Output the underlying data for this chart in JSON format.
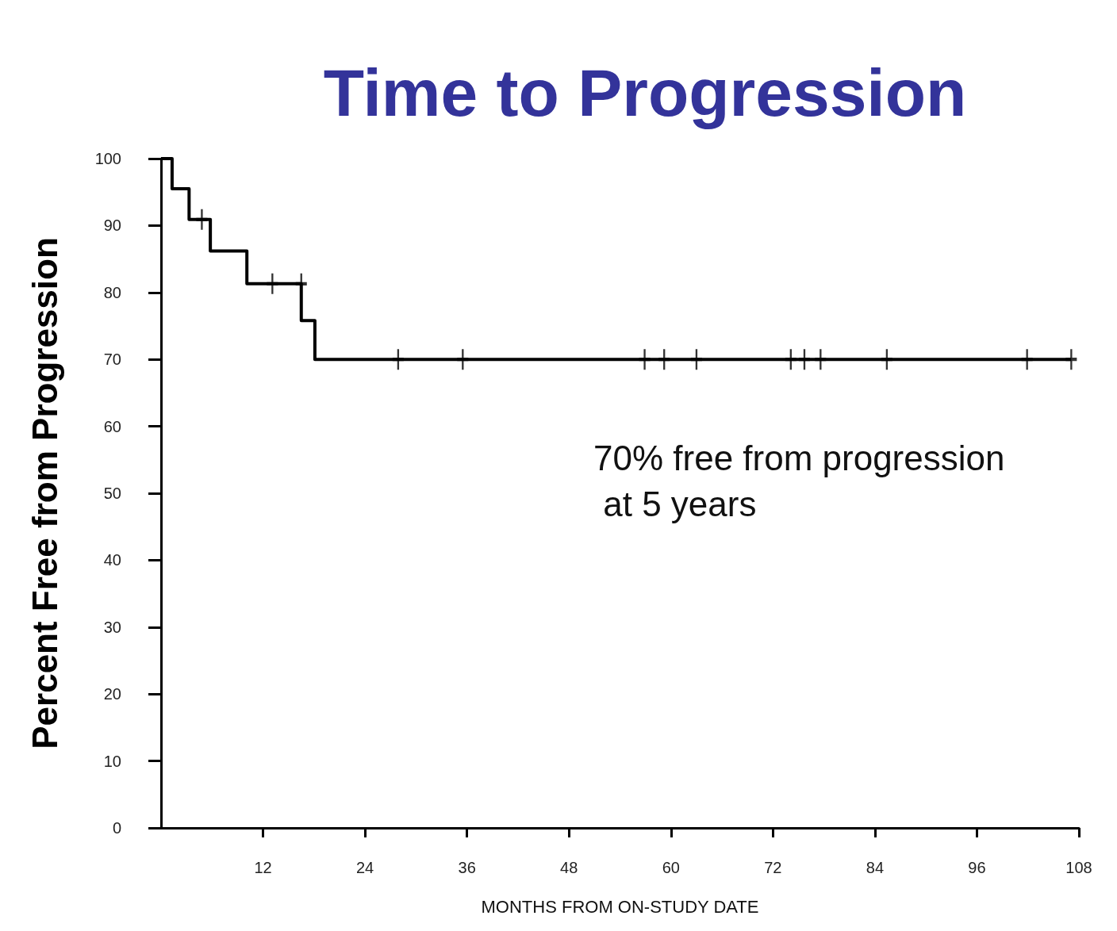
{
  "chart_data": {
    "type": "step",
    "title": "Time to Progression",
    "xlabel": "MONTHS FROM ON-STUDY DATE",
    "ylabel": "Percent Free from Progression",
    "annotations": [
      "70% free from progression\n at 5 years"
    ],
    "xlim": [
      0,
      108
    ],
    "xticks": [
      12,
      24,
      36,
      48,
      60,
      72,
      84,
      96,
      108
    ],
    "ylim": [
      0,
      100
    ],
    "yticks": [
      0,
      10,
      20,
      30,
      40,
      50,
      60,
      70,
      80,
      90,
      100
    ],
    "grid": false,
    "marker": "none",
    "line_style": "solid",
    "series": [
      {
        "color": "#000000",
        "x": [
          0,
          1.3,
          3.3,
          5.8,
          10.1,
          16.5,
          18.1,
          107.1
        ],
        "values": [
          100,
          95.5,
          90.9,
          86.2,
          81.3,
          75.8,
          70,
          70
        ]
      },
      {
        "type": "scatter",
        "marker": "cross",
        "color": "#000000",
        "x": [
          4.8,
          13.1,
          16.5,
          27.9,
          35.5,
          56.9,
          59.2,
          63.0,
          74.1,
          75.7,
          77.6,
          85.4,
          101.9,
          107.1
        ],
        "values": [
          90.9,
          81.3,
          81.3,
          70,
          70,
          70,
          70,
          70,
          70,
          70,
          70,
          70,
          70,
          70
        ]
      }
    ]
  }
}
